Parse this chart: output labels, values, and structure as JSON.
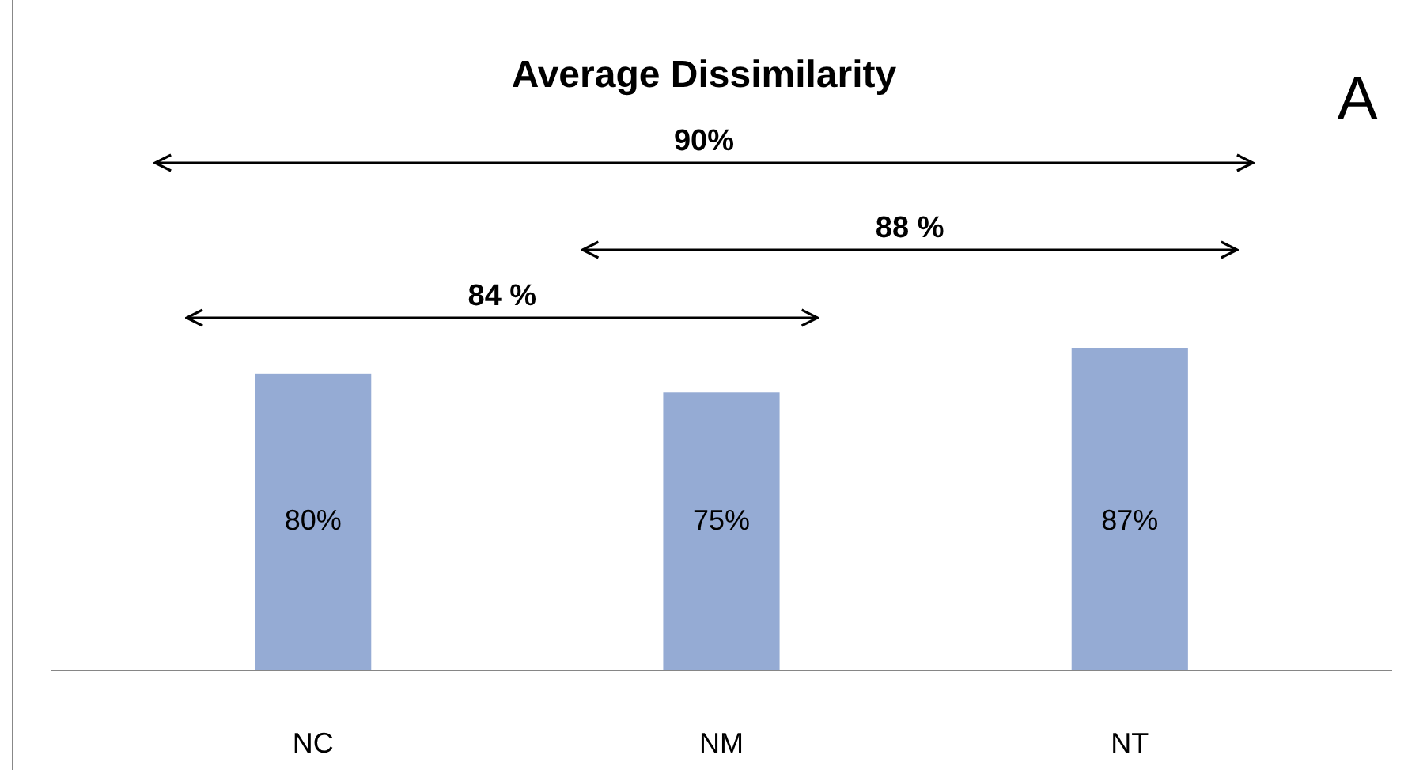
{
  "chart_data": {
    "type": "bar",
    "title": "Average Dissimilarity",
    "categories": [
      "NC",
      "NM",
      "NT"
    ],
    "values": [
      80,
      75,
      87
    ],
    "color": "#95abd4",
    "value_labels": [
      "80%",
      "75%",
      "87%"
    ],
    "annotations": [
      "90%",
      "88 %",
      "84 %",
      "A"
    ]
  }
}
